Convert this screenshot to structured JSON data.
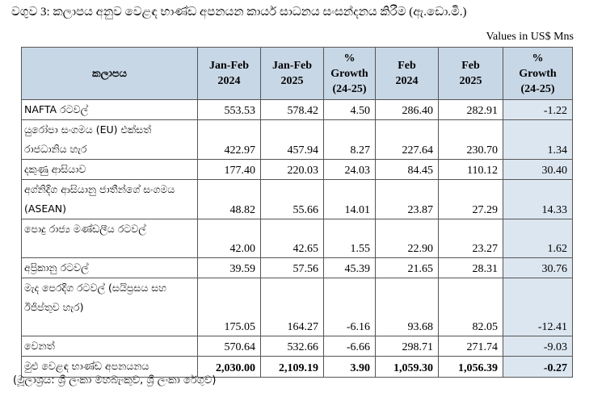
{
  "title": "වගුව 3: කලාපය අනුව වෙළඳ භාණ්ඩ අපනයන කාර්ය සාධනය සංසන්දනය කිරීම (ඇ.ඩො.මි.)",
  "units": "Values in US$ Mns",
  "headers": {
    "region": "කලාපය",
    "jf2024": [
      "Jan-Feb",
      "2024"
    ],
    "jf2025": [
      "Jan-Feb",
      "2025"
    ],
    "growth1": [
      "%",
      "Growth",
      "(24-25)"
    ],
    "feb2024": [
      "Feb",
      "2024"
    ],
    "feb2025": [
      "Feb",
      "2025"
    ],
    "growth2": [
      "%",
      "Growth",
      "(24-25)"
    ]
  },
  "rows": [
    {
      "region": "NAFTA රටවල්",
      "jf2024": "553.53",
      "jf2025": "578.42",
      "g1": "4.50",
      "feb2024": "286.40",
      "feb2025": "282.91",
      "g2": "-1.22"
    },
    {
      "region": "යුරෝපා සංගමය (EU) එක්සත් රාජධානිය හැර",
      "jf2024": "422.97",
      "jf2025": "457.94",
      "g1": "8.27",
      "feb2024": "227.64",
      "feb2025": "230.70",
      "g2": "1.34"
    },
    {
      "region": "දකුණු ආසියාව",
      "jf2024": "177.40",
      "jf2025": "220.03",
      "g1": "24.03",
      "feb2024": "84.45",
      "feb2025": "110.12",
      "g2": "30.40"
    },
    {
      "region": "අග්නිදිග ආසියානු ජාතීන්ගේ සංගමය (ASEAN)",
      "jf2024": "48.82",
      "jf2025": "55.66",
      "g1": "14.01",
      "feb2024": "23.87",
      "feb2025": "27.29",
      "g2": "14.33"
    },
    {
      "region": "පොදු රාජ්‍ය මණ්ඩලීය රටවල්",
      "jf2024": "42.00",
      "jf2025": "42.65",
      "g1": "1.55",
      "feb2024": "22.90",
      "feb2025": "23.27",
      "g2": "1.62"
    },
    {
      "region": "අප්‍රිකානු රටවල්",
      "jf2024": "39.59",
      "jf2025": "57.56",
      "g1": "45.39",
      "feb2024": "21.65",
      "feb2025": "28.31",
      "g2": "30.76"
    },
    {
      "region": "මැද පෙරදිග රටවල් (සයිප්‍රසය සහ ඊජිප්තුව හැර)",
      "jf2024": "175.05",
      "jf2025": "164.27",
      "g1": "-6.16",
      "feb2024": "93.68",
      "feb2025": "82.05",
      "g2": "-12.41"
    },
    {
      "region": "වෙනත්",
      "jf2024": "570.64",
      "jf2025": "532.66",
      "g1": "-6.66",
      "feb2024": "298.71",
      "feb2025": "271.74",
      "g2": "-9.03"
    },
    {
      "region": "මුළු වෙළඳ භාණ්ඩ අපනයනය",
      "jf2024": "2,030.00",
      "jf2025": "2,109.19",
      "g1": "3.90",
      "feb2024": "1,059.30",
      "feb2025": "1,056.39",
      "g2": "-0.27"
    }
  ],
  "source": "(මූලාශ්‍රය: ශ්‍රී ලංකා මහබැංකුව, ශ්‍රී ලංකා රේගුව)",
  "colors": {
    "header_bg": "#c8d7e6",
    "growth_bg": "#dce6f0"
  }
}
